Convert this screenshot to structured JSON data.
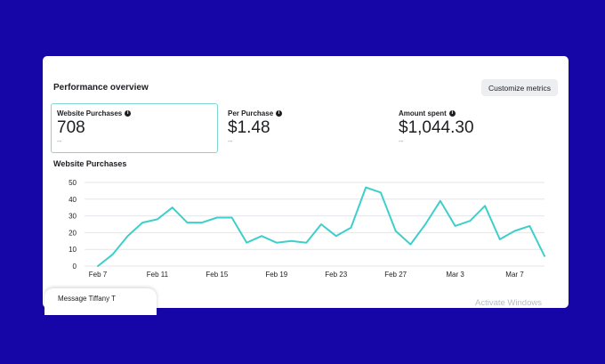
{
  "panel": {
    "title": "Performance overview",
    "customize_label": "Customize metrics"
  },
  "metrics": [
    {
      "label": "Website Purchases",
      "value": "708",
      "compare": "--",
      "info_icon": "info-icon",
      "selected": true
    },
    {
      "label": "Per Purchase",
      "value": "$1.48",
      "compare": "--",
      "info_icon": "info-icon",
      "selected": false
    },
    {
      "label": "Amount spent",
      "value": "$1,044.30",
      "compare": "--",
      "info_icon": "info-icon",
      "selected": false
    }
  ],
  "chart_data": {
    "type": "line",
    "title": "Website Purchases",
    "y_ticks": [
      0,
      10,
      20,
      30,
      40,
      50
    ],
    "ylim": [
      0,
      50
    ],
    "x_tick_labels": [
      "Feb 7",
      "Feb 11",
      "Feb 15",
      "Feb 19",
      "Feb 23",
      "Feb 27",
      "Mar 3",
      "Mar 7"
    ],
    "x": [
      "Feb 7",
      "Feb 8",
      "Feb 9",
      "Feb 10",
      "Feb 11",
      "Feb 12",
      "Feb 13",
      "Feb 14",
      "Feb 15",
      "Feb 16",
      "Feb 17",
      "Feb 18",
      "Feb 19",
      "Feb 20",
      "Feb 21",
      "Feb 22",
      "Feb 23",
      "Feb 24",
      "Feb 25",
      "Feb 26",
      "Feb 27",
      "Feb 28",
      "Mar 1",
      "Mar 2",
      "Mar 3",
      "Mar 4",
      "Mar 5",
      "Mar 6",
      "Mar 7",
      "Mar 8",
      "Mar 9"
    ],
    "values": [
      0,
      7,
      18,
      26,
      28,
      35,
      26,
      26,
      29,
      29,
      14,
      18,
      14,
      15,
      14,
      25,
      18,
      23,
      47,
      44,
      21,
      13,
      25,
      39,
      24,
      27,
      36,
      16,
      21,
      24,
      6
    ],
    "grid": true,
    "color": "#3ecfcb"
  },
  "message_bar": {
    "label": "Message Tiffany T"
  },
  "watermark": "Activate Windows"
}
